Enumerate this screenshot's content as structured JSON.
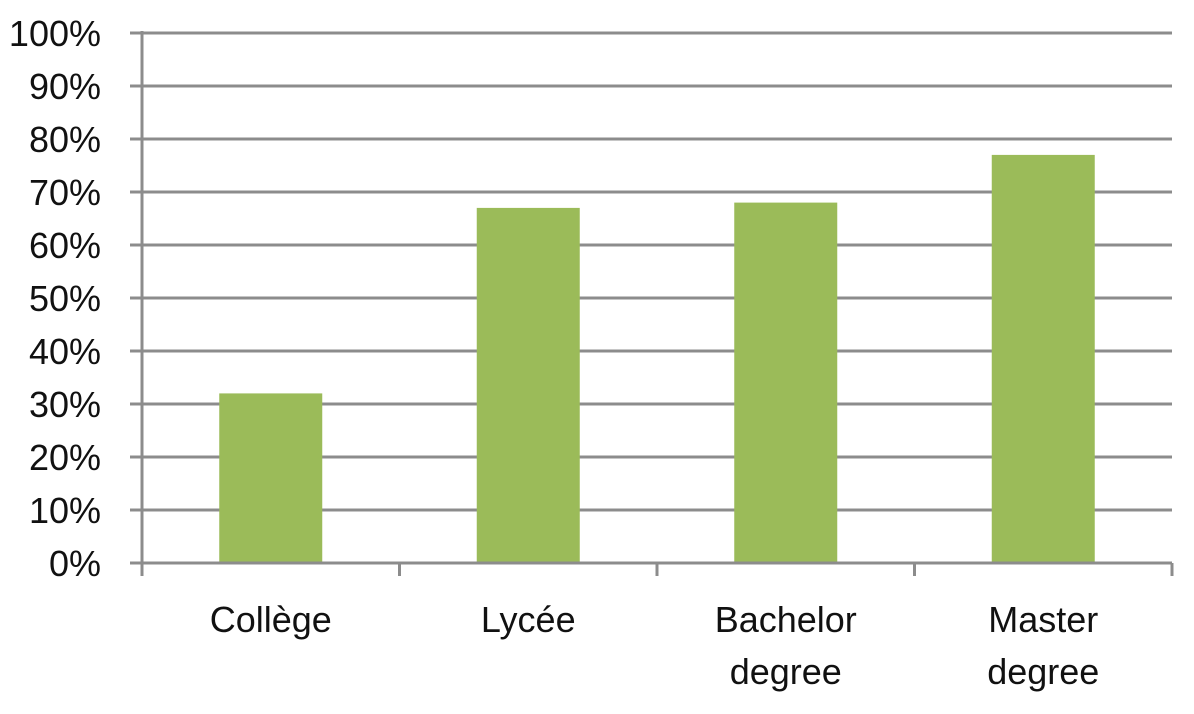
{
  "chart_data": {
    "type": "bar",
    "categories": [
      [
        "Collège"
      ],
      [
        "Lycée"
      ],
      [
        "Bachelor",
        "degree"
      ],
      [
        "Master",
        "degree"
      ]
    ],
    "values": [
      32,
      67,
      68,
      77
    ],
    "unit": "%",
    "ylim": [
      0,
      100
    ],
    "yticks": [
      "0%",
      "10%",
      "20%",
      "30%",
      "40%",
      "50%",
      "60%",
      "70%",
      "80%",
      "90%",
      "100%"
    ],
    "grid": true,
    "legend": "none",
    "bar_color": "#9bbb59",
    "grid_color": "#8c8c8c",
    "title": "",
    "xlabel": "",
    "ylabel": ""
  }
}
